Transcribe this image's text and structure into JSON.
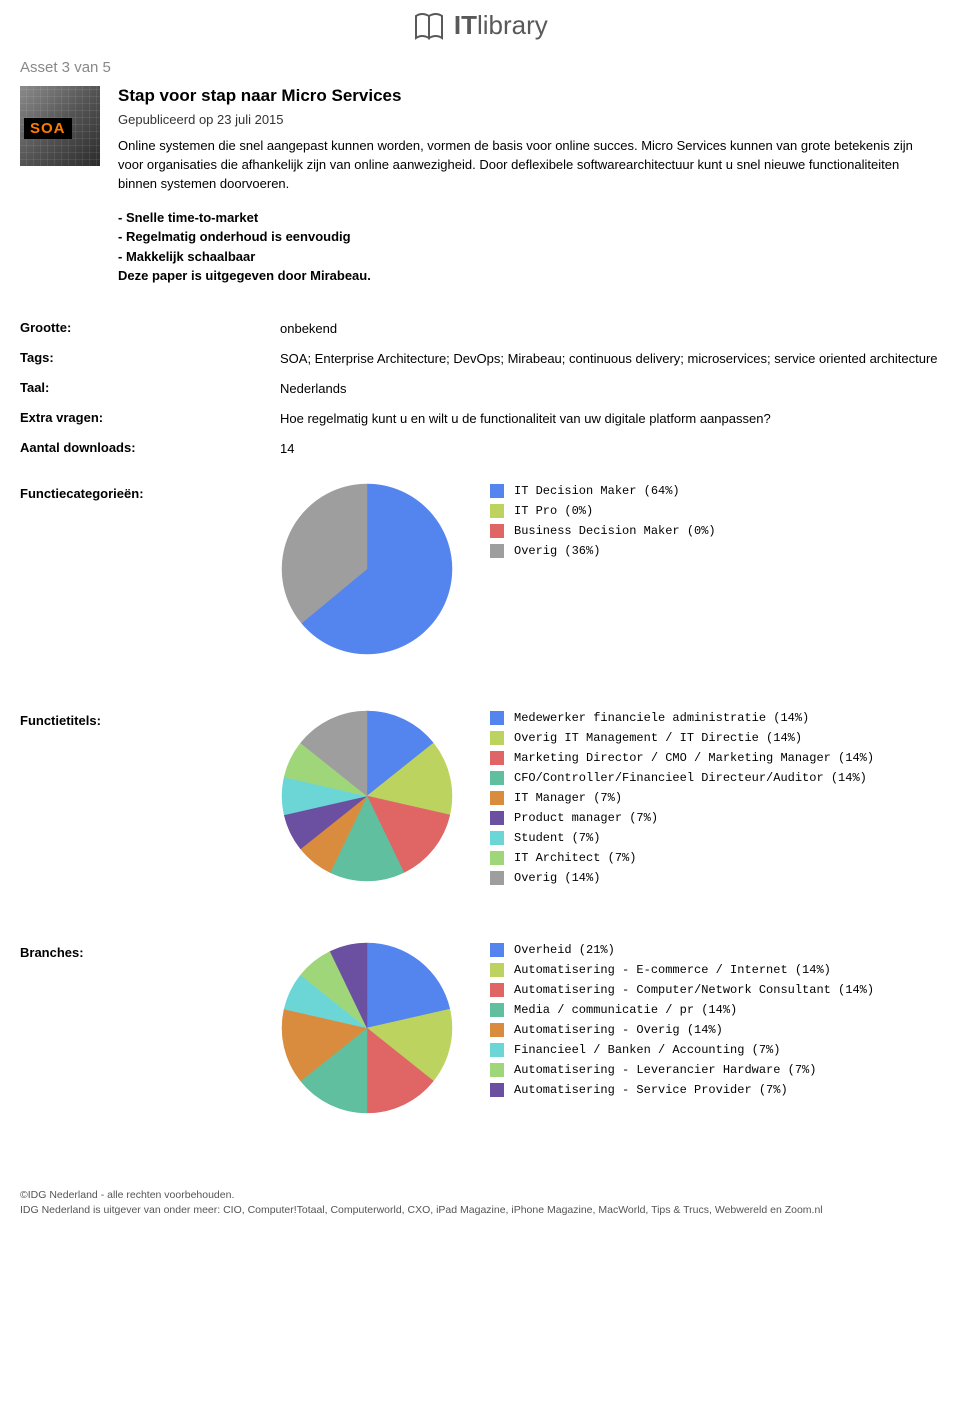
{
  "logo": {
    "brand_bold": "IT",
    "brand_light": "library",
    "color": "#595959"
  },
  "asset_counter": "Asset 3 van 5",
  "thumb_badge": "SOA",
  "title": "Stap voor stap naar Micro Services",
  "published": "Gepubliceerd op 23 juli 2015",
  "description": "Online systemen die snel aangepast kunnen worden, vormen de basis voor online succes. Micro Services kunnen van grote betekenis zijn voor organisaties die afhankelijk zijn van online aanwezigheid. Door deflexibele softwarearchitectuur kunt u snel nieuwe functionaliteiten binnen systemen doorvoeren.",
  "bullets": [
    "-  Snelle time-to-market",
    "-  Regelmatig onderhoud is eenvoudig",
    "-  Makkelijk schaalbaar",
    "Deze paper is uitgegeven door Mirabeau."
  ],
  "meta_labels": {
    "grootte": "Grootte:",
    "tags": "Tags:",
    "taal": "Taal:",
    "extra": "Extra vragen:",
    "downloads": "Aantal downloads:",
    "functiecat": "Functiecategorieën:",
    "functietitels": "Functietitels:",
    "branches": "Branches:"
  },
  "meta_values": {
    "grootte": "onbekend",
    "tags": "SOA; Enterprise Architecture; DevOps; Mirabeau; continuous delivery; microservices; service oriented architecture",
    "taal": "Nederlands",
    "extra": "Hoe regelmatig kunt u en wilt u de functionaliteit van uw digitale platform aanpassen?",
    "downloads": "14"
  },
  "charts": {
    "functiecat": {
      "type": "pie",
      "radius": 85,
      "slices": [
        {
          "label": "IT Decision Maker (64%)",
          "value": 64,
          "color": "#5484ed"
        },
        {
          "label": "IT Pro (0%)",
          "value": 0,
          "color": "#bcd35f"
        },
        {
          "label": "Business Decision Maker (0%)",
          "value": 0,
          "color": "#e06666"
        },
        {
          "label": "Overig (36%)",
          "value": 36,
          "color": "#9e9e9e"
        }
      ]
    },
    "functietitels": {
      "type": "pie",
      "radius": 85,
      "slices": [
        {
          "label": "Medewerker financiele administratie (14%)",
          "value": 14,
          "color": "#5484ed"
        },
        {
          "label": "Overig IT Management / IT Directie (14%)",
          "value": 14,
          "color": "#bcd35f"
        },
        {
          "label": "Marketing Director / CMO / Marketing Manager (14%)",
          "value": 14,
          "color": "#e06666"
        },
        {
          "label": "CFO/Controller/Financieel Directeur/Auditor (14%)",
          "value": 14,
          "color": "#5fbf9e"
        },
        {
          "label": "IT Manager (7%)",
          "value": 7,
          "color": "#d98c3e"
        },
        {
          "label": "Product manager (7%)",
          "value": 7,
          "color": "#6b4fa0"
        },
        {
          "label": "Student (7%)",
          "value": 7,
          "color": "#6cd6d6"
        },
        {
          "label": "IT Architect (7%)",
          "value": 7,
          "color": "#9fd67a"
        },
        {
          "label": "Overig (14%)",
          "value": 14,
          "color": "#9e9e9e"
        }
      ]
    },
    "branches": {
      "type": "pie",
      "radius": 85,
      "slices": [
        {
          "label": "Overheid (21%)",
          "value": 21,
          "color": "#5484ed"
        },
        {
          "label": "Automatisering - E-commerce / Internet (14%)",
          "value": 14,
          "color": "#bcd35f"
        },
        {
          "label": "Automatisering - Computer/Network Consultant (14%)",
          "value": 14,
          "color": "#e06666"
        },
        {
          "label": "Media / communicatie / pr (14%)",
          "value": 14,
          "color": "#5fbf9e"
        },
        {
          "label": "Automatisering - Overig (14%)",
          "value": 14,
          "color": "#d98c3e"
        },
        {
          "label": "Financieel / Banken / Accounting (7%)",
          "value": 7,
          "color": "#6cd6d6"
        },
        {
          "label": "Automatisering - Leverancier Hardware (7%)",
          "value": 7,
          "color": "#9fd67a"
        },
        {
          "label": "Automatisering - Service Provider (7%)",
          "value": 7,
          "color": "#6b4fa0"
        }
      ]
    }
  },
  "footer": {
    "line1": "©IDG Nederland - alle rechten voorbehouden.",
    "line2": "IDG Nederland is uitgever van onder meer: CIO, Computer!Totaal, Computerworld, CXO, iPad Magazine, iPhone Magazine, MacWorld, Tips & Trucs, Webwereld en Zoom.nl"
  }
}
